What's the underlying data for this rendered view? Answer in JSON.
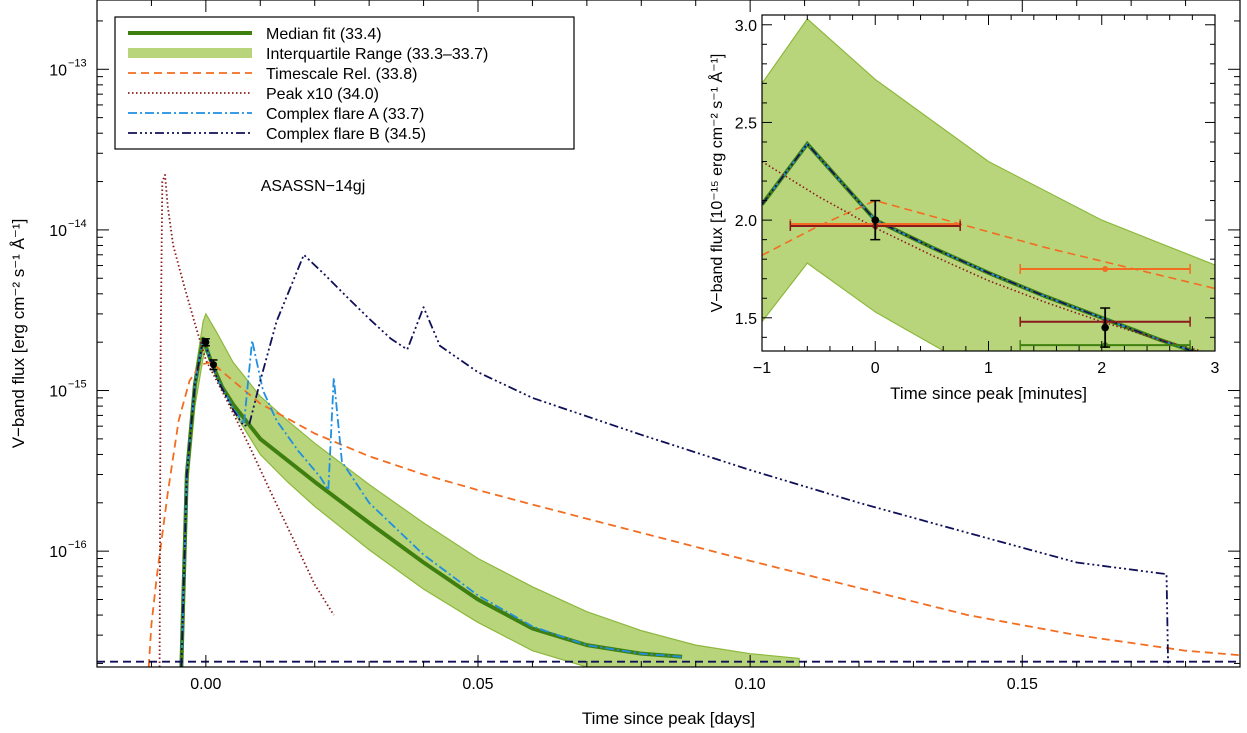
{
  "chart_data": [
    {
      "type": "line",
      "xlabel": "Time since peak [days]",
      "ylabel": "V−band flux [erg cm⁻² s⁻¹ Å⁻¹]",
      "annotation": "ASASSN−14gj",
      "xlim": [
        -0.02,
        0.19
      ],
      "ylim": [
        1.9e-17,
        2.7e-13
      ],
      "yscale": "log",
      "x_ticks": [
        {
          "value": 0.0,
          "label": "0.00"
        },
        {
          "value": 0.05,
          "label": "0.05"
        },
        {
          "value": 0.1,
          "label": "0.10"
        },
        {
          "value": 0.15,
          "label": "0.15"
        }
      ],
      "y_ticks": [
        {
          "value": 1e-16,
          "label": "10",
          "exp": "−16"
        },
        {
          "value": 1e-15,
          "label": "10",
          "exp": "−15"
        },
        {
          "value": 1e-14,
          "label": "10",
          "exp": "−14"
        },
        {
          "value": 1e-13,
          "label": "10",
          "exp": "−13"
        }
      ],
      "legend": {
        "placement": "top-left",
        "entries": [
          {
            "label": "Median fit (33.4)",
            "color": "#3f7f0f",
            "style": "solid-thick"
          },
          {
            "label": "Interquartile Range (33.3–33.7)",
            "color": "#b8d57c",
            "style": "band"
          },
          {
            "label": "Timescale Rel. (33.8)",
            "color": "#f26d21",
            "style": "dashed"
          },
          {
            "label": "Peak x10 (34.0)",
            "color": "#8b1a1a",
            "style": "dotted"
          },
          {
            "label": "Complex flare A (33.7)",
            "color": "#1f8fe0",
            "style": "dashdot"
          },
          {
            "label": "Complex flare B (34.5)",
            "color": "#101058",
            "style": "dashdotdotdot"
          }
        ]
      },
      "series": [
        {
          "name": "Interquartile Range (33.3–33.7)",
          "kind": "band",
          "color": "#b8d57c",
          "edge_color": "#8db83c",
          "x": [
            -0.0045,
            -0.0035,
            -0.002,
            -0.0005,
            0.0,
            0.002,
            0.005,
            0.01,
            0.015,
            0.02,
            0.03,
            0.04,
            0.05,
            0.06,
            0.07,
            0.08,
            0.09,
            0.1,
            0.109
          ],
          "lower": [
            1.9e-17,
            2.3e-16,
            8e-16,
            1.6e-15,
            1.8e-15,
            1.25e-15,
            7.5e-16,
            4e-16,
            2.7e-16,
            1.9e-16,
            1.02e-16,
            5.8e-17,
            3.6e-17,
            2.4e-17,
            1.9e-17,
            null,
            null,
            null,
            null
          ],
          "upper": [
            2.6e-17,
            3.5e-16,
            1.25e-15,
            2.7e-15,
            3e-15,
            2.3e-15,
            1.5e-15,
            9.2e-16,
            6.5e-16,
            4.7e-16,
            2.6e-16,
            1.5e-16,
            9e-17,
            6e-17,
            4.2e-17,
            3.2e-17,
            2.6e-17,
            2.3e-17,
            2.15e-17
          ]
        },
        {
          "name": "Median fit (33.4)",
          "color": "#3f7f0f",
          "x": [
            -0.0045,
            -0.0035,
            -0.002,
            -0.001,
            -0.0005,
            0.001,
            0.003,
            0.005,
            0.01,
            0.02,
            0.03,
            0.04,
            0.05,
            0.06,
            0.07,
            0.08,
            0.0875
          ],
          "y": [
            1.9e-17,
            3e-16,
            1.1e-15,
            1.7e-15,
            2.1e-15,
            1.5e-15,
            1.05e-15,
            8.2e-16,
            5e-16,
            2.7e-16,
            1.5e-16,
            8.5e-17,
            5e-17,
            3.3e-17,
            2.6e-17,
            2.3e-17,
            2.2e-17
          ]
        },
        {
          "name": "Timescale Rel. (33.8)",
          "color": "#f26d21",
          "x": [
            -0.0105,
            -0.01,
            -0.009,
            -0.007,
            -0.005,
            -0.003,
            -0.001,
            0.001,
            0.005,
            0.01,
            0.02,
            0.03,
            0.04,
            0.05,
            0.06,
            0.08,
            0.1,
            0.12,
            0.14,
            0.16,
            0.18,
            0.19
          ],
          "y": [
            1.9e-17,
            3.5e-17,
            7e-17,
            2.3e-16,
            6.5e-16,
            1.15e-15,
            1.45e-15,
            1.5e-15,
            1.15e-15,
            8.3e-16,
            5.4e-16,
            3.9e-16,
            3e-16,
            2.4e-16,
            1.95e-16,
            1.3e-16,
            8.7e-17,
            5.9e-17,
            4e-17,
            3e-17,
            2.4e-17,
            2.25e-17
          ]
        },
        {
          "name": "Peak x10 (34.0)",
          "color": "#8b1a1a",
          "x": [
            -0.0085,
            -0.0083,
            -0.008,
            -0.0075,
            -0.007,
            -0.006,
            -0.004,
            -0.002,
            0.0,
            0.004,
            0.008,
            0.012,
            0.016,
            0.02,
            0.0235
          ],
          "y": [
            1.9e-17,
            2e-15,
            2e-14,
            2.2e-14,
            1.4e-14,
            8e-15,
            4.5e-15,
            2.6e-15,
            1.55e-15,
            8.5e-16,
            4.5e-16,
            2.3e-16,
            1.2e-16,
            6.2e-17,
            4e-17
          ]
        },
        {
          "name": "Complex flare A (33.7)",
          "color": "#1f8fe0",
          "x": [
            -0.0045,
            -0.0035,
            -0.002,
            -0.0005,
            0.002,
            0.005,
            0.007,
            0.0085,
            0.0105,
            0.013,
            0.017,
            0.021,
            0.0225,
            0.0235,
            0.025,
            0.03,
            0.04,
            0.05,
            0.06,
            0.07,
            0.08,
            0.0875
          ],
          "y": [
            1.9e-17,
            3e-16,
            1.1e-15,
            2.1e-15,
            1.2e-15,
            7.8e-16,
            6.2e-16,
            2.05e-15,
            1e-15,
            6.5e-16,
            4.2e-16,
            2.9e-16,
            2.4e-16,
            1.2e-15,
            3.6e-16,
            2e-16,
            9.5e-17,
            5.3e-17,
            3.4e-17,
            2.6e-17,
            2.3e-17,
            2.2e-17
          ]
        },
        {
          "name": "Complex flare B (34.5)",
          "color": "#101058",
          "x": [
            -0.0045,
            -0.0035,
            -0.002,
            -0.0005,
            0.002,
            0.005,
            0.007,
            0.008,
            0.01,
            0.013,
            0.018,
            0.022,
            0.026,
            0.03,
            0.034,
            0.037,
            0.04,
            0.043,
            0.05,
            0.06,
            0.08,
            0.1,
            0.12,
            0.14,
            0.16,
            0.175,
            0.1765,
            0.1768
          ],
          "y": [
            1.9e-17,
            3e-16,
            1.1e-15,
            2.1e-15,
            1.2e-15,
            7.6e-16,
            6e-16,
            6.2e-16,
            1.15e-15,
            2.7e-15,
            7e-15,
            5.2e-15,
            3.8e-15,
            2.8e-15,
            2.1e-15,
            1.8e-15,
            3.3e-15,
            1.9e-15,
            1.3e-15,
            9e-16,
            5.3e-16,
            3.2e-16,
            2e-16,
            1.3e-16,
            8.5e-17,
            7.3e-17,
            7.2e-17,
            1.9e-17
          ]
        },
        {
          "name": "",
          "color": "#101058",
          "style": "dashed",
          "x": [
            -0.02,
            0.19
          ],
          "y": [
            2.05e-17,
            2.05e-17
          ]
        }
      ],
      "points": [
        {
          "x": 0.0,
          "y": 2e-15,
          "yerr": 1e-16
        },
        {
          "x": 0.0014,
          "y": 1.45e-15,
          "yerr": 1e-16
        }
      ]
    },
    {
      "type": "line",
      "xlabel": "Time since peak [minutes]",
      "ylabel": "V−band flux [10⁻¹⁵ erg cm⁻² s⁻¹ Å⁻¹]",
      "xlim": [
        -1,
        3
      ],
      "ylim": [
        1.33,
        3.05
      ],
      "x_ticks": [
        {
          "value": -1,
          "label": "−1"
        },
        {
          "value": 0,
          "label": "0"
        },
        {
          "value": 1,
          "label": "1"
        },
        {
          "value": 2,
          "label": "2"
        },
        {
          "value": 3,
          "label": "3"
        }
      ],
      "y_ticks": [
        {
          "value": 1.5,
          "label": "1.5"
        },
        {
          "value": 2.0,
          "label": "2.0"
        },
        {
          "value": 2.5,
          "label": "2.5"
        },
        {
          "value": 3.0,
          "label": "3.0"
        }
      ],
      "series": [
        {
          "name": "Interquartile Range (33.3–33.7)",
          "kind": "band",
          "color": "#b8d57c",
          "edge_color": "#8db83c",
          "x": [
            -1,
            -0.6,
            0,
            1,
            2,
            3
          ],
          "lower": [
            1.48,
            1.78,
            1.53,
            1.2,
            0.95,
            0.75
          ],
          "upper": [
            2.7,
            3.03,
            2.72,
            2.3,
            2.0,
            1.77
          ]
        },
        {
          "name": "Median fit (33.4)",
          "color": "#3f7f0f",
          "x": [
            -1,
            -0.6,
            0,
            0.5,
            1,
            1.5,
            2,
            2.5,
            3
          ],
          "y": [
            2.08,
            2.39,
            2.0,
            1.86,
            1.73,
            1.61,
            1.5,
            1.39,
            1.29
          ]
        },
        {
          "name": "Complex flare A (33.7)",
          "color": "#1f8fe0",
          "x": [
            -1,
            -0.6,
            0,
            0.5,
            1,
            1.5,
            2,
            2.5,
            3
          ],
          "y": [
            2.08,
            2.39,
            2.0,
            1.86,
            1.73,
            1.61,
            1.5,
            1.39,
            1.29
          ]
        },
        {
          "name": "Complex flare B (34.5)",
          "color": "#101058",
          "x": [
            -1,
            -0.6,
            0,
            0.5,
            1,
            1.5,
            2,
            2.5,
            3
          ],
          "y": [
            2.08,
            2.39,
            2.0,
            1.86,
            1.73,
            1.61,
            1.5,
            1.39,
            1.29
          ]
        },
        {
          "name": "Timescale Rel. (33.8)",
          "color": "#f26d21",
          "x": [
            -1,
            -0.5,
            0,
            0.5,
            1,
            1.5,
            2,
            2.5,
            3
          ],
          "y": [
            1.82,
            1.97,
            2.1,
            2.02,
            1.94,
            1.86,
            1.79,
            1.72,
            1.65
          ]
        },
        {
          "name": "Peak x10 (34.0)",
          "color": "#8b1a1a",
          "x": [
            -1,
            -0.5,
            0,
            0.5,
            1,
            1.5,
            2,
            2.5,
            3
          ],
          "y": [
            2.3,
            2.12,
            1.96,
            1.82,
            1.69,
            1.58,
            1.48,
            1.39,
            1.31
          ]
        }
      ],
      "errorbars": [
        {
          "x": 0.0,
          "y": 1.98,
          "xerr": 0.75,
          "yerr": 0.0,
          "color": "#3f7f0f"
        },
        {
          "x": 0.0,
          "y": 1.98,
          "xerr": 0.75,
          "yerr": 0.0,
          "color": "#f26d21"
        },
        {
          "x": 0.0,
          "y": 1.97,
          "xerr": 0.75,
          "yerr": 0.0,
          "color": "#8b1a1a"
        },
        {
          "x": 0.0,
          "y": 2.0,
          "xerr": 0.0,
          "yerr": 0.1,
          "color": "#000000"
        },
        {
          "x": 2.03,
          "y": 1.75,
          "xerr": 0.75,
          "yerr": 0.0,
          "color": "#f26d21"
        },
        {
          "x": 2.03,
          "y": 1.48,
          "xerr": 0.75,
          "yerr": 0.0,
          "color": "#8b1a1a"
        },
        {
          "x": 2.03,
          "y": 1.36,
          "xerr": 0.75,
          "yerr": 0.0,
          "color": "#3f7f0f"
        },
        {
          "x": 2.03,
          "y": 1.45,
          "xerr": 0.0,
          "yerr": 0.1,
          "color": "#000000"
        }
      ]
    }
  ]
}
